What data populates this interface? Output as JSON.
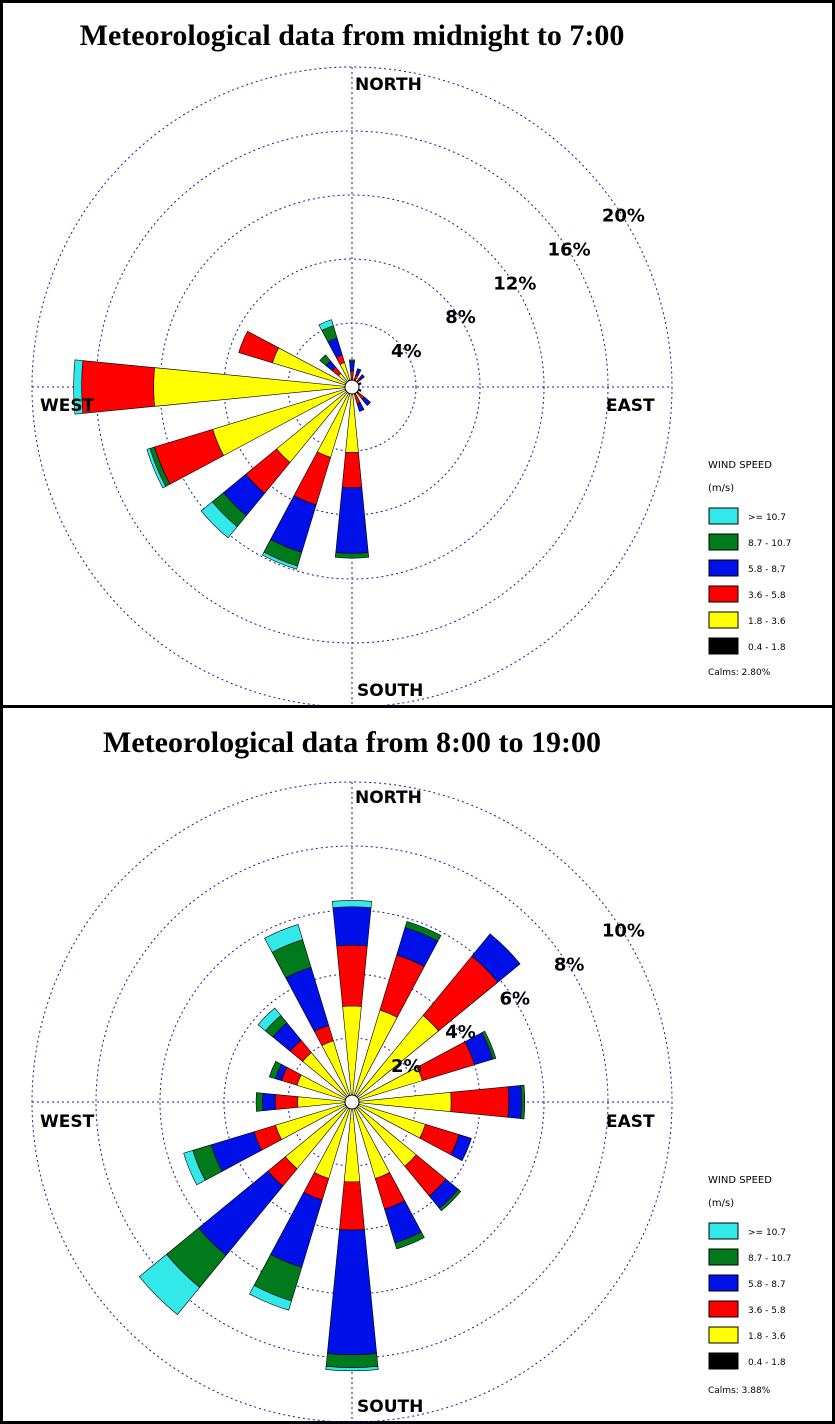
{
  "bins": [
    {
      "label": ">= 10.7",
      "color": "#33e8e8"
    },
    {
      "label": "8.7 - 10.7",
      "color": "#007a1a"
    },
    {
      "label": "5.8 - 8.7",
      "color": "#0010e8"
    },
    {
      "label": "3.6 - 5.8",
      "color": "#ff0000"
    },
    {
      "label": "1.8 - 3.6",
      "color": "#ffff00"
    },
    {
      "label": "0.4 - 1.8",
      "color": "#000000"
    }
  ],
  "chart_data": [
    {
      "type": "wind-rose",
      "title": "Meteorological data from midnight to 7:00",
      "directions": [
        "N",
        "NNE",
        "NE",
        "ENE",
        "E",
        "ESE",
        "SE",
        "SSE",
        "S",
        "SSW",
        "SW",
        "WSW",
        "W",
        "WNW",
        "NW",
        "NNW"
      ],
      "compass_labels": {
        "north": "NORTH",
        "south": "SOUTH",
        "east": "EAST",
        "west": "WEST"
      },
      "rings": [
        4,
        8,
        12,
        16,
        20
      ],
      "ring_labels": [
        "4%",
        "8%",
        "12%",
        "16%",
        "20%"
      ],
      "rmax": 20,
      "legend_title": [
        "WIND SPEED",
        "(m/s)"
      ],
      "calms": "Calms: 2.80%",
      "series_order_inner_to_outer": [
        "0.4 - 1.8",
        "1.8 - 3.6",
        "3.6 - 5.8",
        "5.8 - 8.7",
        "8.7 - 10.7",
        ">= 10.7"
      ],
      "values": {
        "N": [
          0.1,
          0.4,
          0.5,
          0.6,
          0.1,
          0.0
        ],
        "NNE": [
          0.1,
          0.3,
          0.4,
          0.4,
          0.0,
          0.0
        ],
        "NE": [
          0.1,
          0.3,
          0.3,
          0.3,
          0.0,
          0.0
        ],
        "ENE": [
          0.0,
          0.2,
          0.3,
          0.1,
          0.0,
          0.0
        ],
        "E": [
          0.0,
          0.2,
          0.1,
          0.0,
          0.0,
          0.0
        ],
        "ESE": [
          0.0,
          0.2,
          0.2,
          0.2,
          0.0,
          0.0
        ],
        "SE": [
          0.1,
          0.4,
          0.5,
          0.5,
          0.0,
          0.0
        ],
        "SSE": [
          0.1,
          0.4,
          0.6,
          0.5,
          0.0,
          0.0
        ],
        "S": [
          0.1,
          4.0,
          2.2,
          4.1,
          0.3,
          0.0
        ],
        "SSW": [
          0.1,
          4.5,
          3.1,
          3.1,
          0.9,
          0.2
        ],
        "SW": [
          0.1,
          6.0,
          2.5,
          1.8,
          0.9,
          0.9
        ],
        "WSW": [
          0.1,
          9.0,
          3.8,
          0.0,
          0.3,
          0.2
        ],
        "W": [
          0.1,
          12.3,
          4.5,
          0.0,
          0.0,
          0.5
        ],
        "WNW": [
          0.1,
          5.1,
          2.2,
          0.0,
          0.0,
          0.0
        ],
        "NW": [
          0.1,
          1.0,
          0.5,
          0.5,
          0.5,
          0.0
        ],
        "NNW": [
          0.1,
          1.5,
          0.5,
          1.1,
          0.8,
          0.4
        ]
      }
    },
    {
      "type": "wind-rose",
      "title": "Meteorological data from 8:00 to 19:00",
      "directions": [
        "N",
        "NNE",
        "NE",
        "ENE",
        "E",
        "ESE",
        "SE",
        "SSE",
        "S",
        "SSW",
        "SW",
        "WSW",
        "W",
        "WNW",
        "NW",
        "NNW"
      ],
      "compass_labels": {
        "north": "NORTH",
        "south": "SOUTH",
        "east": "EAST",
        "west": "WEST"
      },
      "rings": [
        2,
        4,
        6,
        8,
        10
      ],
      "ring_labels": [
        "2%",
        "4%",
        "6%",
        "8%",
        "10%"
      ],
      "rmax": 10,
      "legend_title": [
        "WIND SPEED",
        "(m/s)"
      ],
      "calms": "Calms: 3.88%",
      "series_order_inner_to_outer": [
        "0.4 - 1.8",
        "1.8 - 3.6",
        "3.6 - 5.8",
        "5.8 - 8.7",
        "8.7 - 10.7",
        ">= 10.7"
      ],
      "values": {
        "N": [
          0.0,
          3.0,
          1.9,
          1.2,
          0.0,
          0.2
        ],
        "NNE": [
          0.0,
          3.0,
          1.8,
          0.9,
          0.2,
          0.0
        ],
        "NE": [
          0.0,
          3.5,
          2.4,
          0.9,
          0.0,
          0.0
        ],
        "ENE": [
          0.0,
          2.3,
          1.7,
          0.6,
          0.1,
          0.0
        ],
        "E": [
          0.0,
          3.1,
          1.8,
          0.4,
          0.1,
          0.0
        ],
        "ESE": [
          0.0,
          2.4,
          1.1,
          0.4,
          0.0,
          0.0
        ],
        "SE": [
          0.0,
          2.6,
          1.2,
          0.5,
          0.1,
          0.0
        ],
        "SSE": [
          0.0,
          2.5,
          1.0,
          1.1,
          0.2,
          0.0
        ],
        "S": [
          0.0,
          2.5,
          1.5,
          3.9,
          0.4,
          0.1
        ],
        "SSW": [
          0.0,
          2.5,
          0.7,
          2.2,
          1.1,
          0.3
        ],
        "SW": [
          0.0,
          2.7,
          0.7,
          2.8,
          1.3,
          1.1
        ],
        "WSW": [
          0.0,
          2.5,
          0.7,
          1.4,
          0.6,
          0.3
        ],
        "W": [
          0.0,
          1.7,
          0.7,
          0.4,
          0.2,
          0.0
        ],
        "WNW": [
          0.0,
          1.8,
          0.5,
          0.2,
          0.2,
          0.0
        ],
        "NW": [
          0.0,
          2.0,
          0.5,
          0.7,
          0.3,
          0.3
        ],
        "NNW": [
          0.0,
          2.0,
          0.5,
          1.9,
          0.9,
          0.5
        ]
      }
    }
  ]
}
